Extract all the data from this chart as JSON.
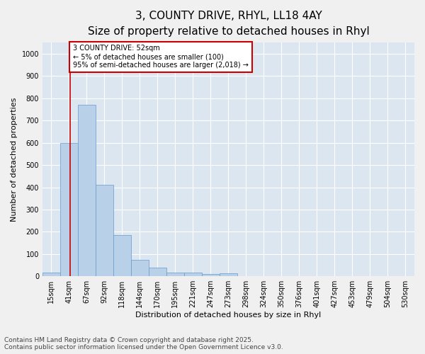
{
  "title_line1": "3, COUNTY DRIVE, RHYL, LL18 4AY",
  "title_line2": "Size of property relative to detached houses in Rhyl",
  "xlabel": "Distribution of detached houses by size in Rhyl",
  "ylabel": "Number of detached properties",
  "bin_labels": [
    "15sqm",
    "41sqm",
    "67sqm",
    "92sqm",
    "118sqm",
    "144sqm",
    "170sqm",
    "195sqm",
    "221sqm",
    "247sqm",
    "273sqm",
    "298sqm",
    "324sqm",
    "350sqm",
    "376sqm",
    "401sqm",
    "427sqm",
    "453sqm",
    "479sqm",
    "504sqm",
    "530sqm"
  ],
  "bar_heights": [
    15,
    600,
    770,
    410,
    185,
    75,
    38,
    15,
    15,
    10,
    12,
    0,
    0,
    0,
    0,
    0,
    0,
    0,
    0,
    0,
    0
  ],
  "bar_color": "#b8d0e8",
  "bar_edge_color": "#6699cc",
  "background_color": "#dce6f0",
  "grid_color": "#ffffff",
  "vline_x_index": 1.08,
  "vline_color": "#cc0000",
  "annotation_text": "3 COUNTY DRIVE: 52sqm\n← 5% of detached houses are smaller (100)\n95% of semi-detached houses are larger (2,018) →",
  "annotation_box_color": "#cc0000",
  "ylim": [
    0,
    1050
  ],
  "yticks": [
    0,
    100,
    200,
    300,
    400,
    500,
    600,
    700,
    800,
    900,
    1000
  ],
  "footnote": "Contains HM Land Registry data © Crown copyright and database right 2025.\nContains public sector information licensed under the Open Government Licence v3.0.",
  "title_fontsize": 11,
  "subtitle_fontsize": 9,
  "label_fontsize": 8,
  "tick_fontsize": 7,
  "annotation_fontsize": 7,
  "footnote_fontsize": 6.5
}
